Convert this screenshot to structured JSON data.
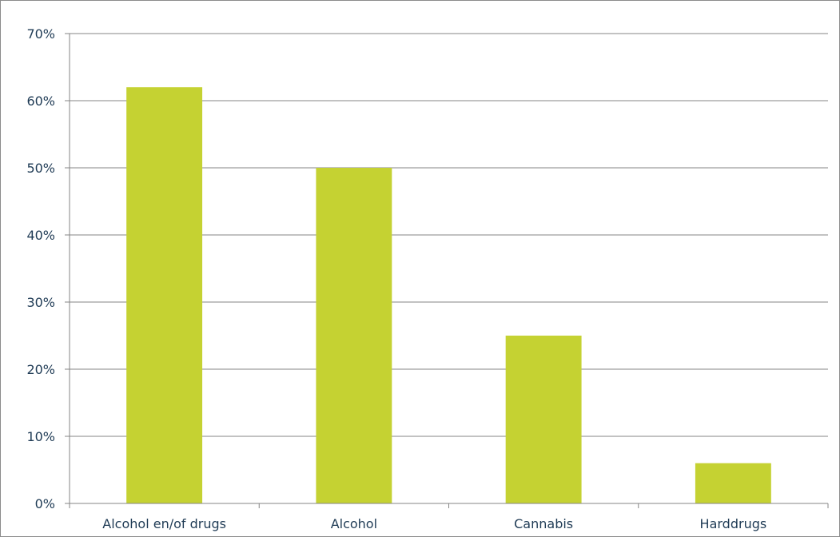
{
  "chart_data": {
    "type": "bar",
    "categories": [
      "Alcohol en/of drugs",
      "Alcohol",
      "Cannabis",
      "Harddrugs"
    ],
    "values": [
      62,
      50,
      25,
      6
    ],
    "y_tick_labels": [
      "0%",
      "10%",
      "20%",
      "30%",
      "40%",
      "50%",
      "60%",
      "70%"
    ],
    "ylim": [
      0,
      70
    ],
    "y_step": 10,
    "unit": "%",
    "grid": true,
    "legend": false
  },
  "colors": {
    "bar": "#c5d232",
    "grid": "#868686",
    "axis": "#868686",
    "text": "#1f3b55"
  }
}
